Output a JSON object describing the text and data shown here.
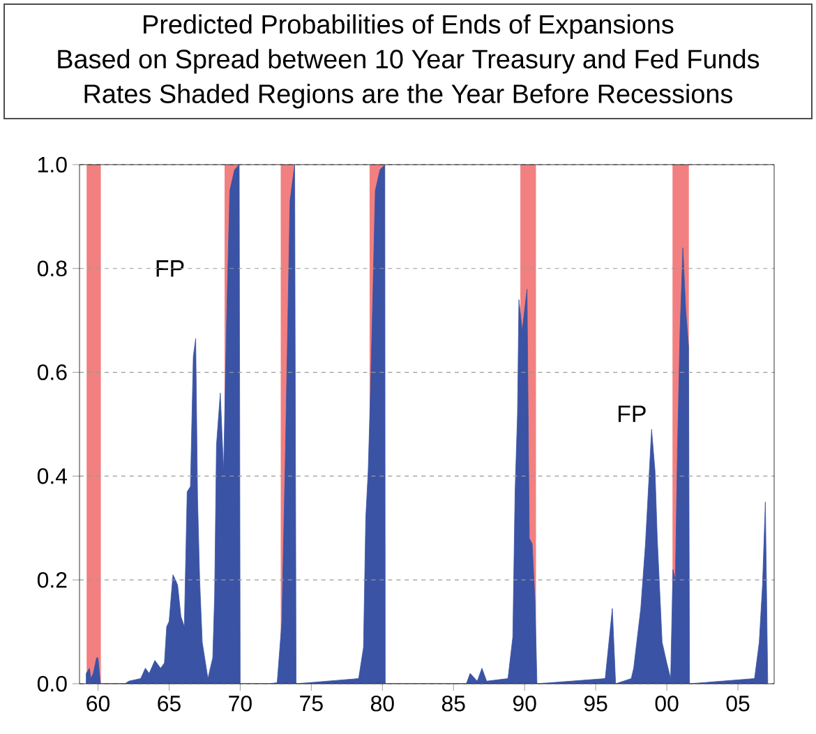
{
  "chart_data": {
    "type": "area",
    "title": "Predicted Probabilities of Ends of Expansions",
    "subtitle": "Based on Spread between 10 Year Treasury and Fed Funds Rates Shaded Regions are the Year Before Recessions",
    "xlim": [
      1958.7,
      2007.55
    ],
    "ylim": [
      0,
      1
    ],
    "xticks": [
      {
        "value": 1960,
        "label": "60"
      },
      {
        "value": 1965,
        "label": "65"
      },
      {
        "value": 1970,
        "label": "70"
      },
      {
        "value": 1975,
        "label": "75"
      },
      {
        "value": 1980,
        "label": "80"
      },
      {
        "value": 1985,
        "label": "85"
      },
      {
        "value": 1990,
        "label": "90"
      },
      {
        "value": 1995,
        "label": "95"
      },
      {
        "value": 2000,
        "label": "00"
      },
      {
        "value": 2005,
        "label": "05"
      }
    ],
    "yticks": [
      {
        "value": 0,
        "label": "0.0"
      },
      {
        "value": 0.2,
        "label": "0.2"
      },
      {
        "value": 0.4,
        "label": "0.4"
      },
      {
        "value": 0.6,
        "label": "0.6"
      },
      {
        "value": 0.8,
        "label": "0.8"
      },
      {
        "value": 1,
        "label": "1.0"
      }
    ],
    "grid": "y",
    "bands": [
      {
        "axis": "x",
        "from": 1959.2,
        "to": 1960.2,
        "color": "#f28080"
      },
      {
        "axis": "x",
        "from": 1968.9,
        "to": 1969.9,
        "color": "#f28080"
      },
      {
        "axis": "x",
        "from": 1972.85,
        "to": 1973.8,
        "color": "#f28080"
      },
      {
        "axis": "x",
        "from": 1979.1,
        "to": 1980.15,
        "color": "#f28080"
      },
      {
        "axis": "x",
        "from": 1989.7,
        "to": 1990.8,
        "color": "#f28080"
      },
      {
        "axis": "x",
        "from": 2000.4,
        "to": 2001.55,
        "color": "#f28080"
      }
    ],
    "annotations": [
      "FP",
      "FP"
    ],
    "series": [
      {
        "color": "#3a53a4",
        "x": [
          1959.17,
          1959.4,
          1959.5,
          1959.67,
          1959.9,
          1960.0,
          1960.17,
          1961.9,
          1962.17,
          1963.0,
          1963.33,
          1963.6,
          1964.0,
          1964.4,
          1964.67,
          1964.83,
          1965.0,
          1965.27,
          1965.45,
          1965.6,
          1965.83,
          1966.07,
          1966.27,
          1966.5,
          1966.7,
          1966.87,
          1967.0,
          1967.15,
          1967.33,
          1967.73,
          1968.07,
          1968.2,
          1968.33,
          1968.6,
          1968.83,
          1969.07,
          1969.27,
          1969.6,
          1969.93,
          1970.0,
          1972.0,
          1972.6,
          1972.93,
          1973.17,
          1973.5,
          1973.83,
          1973.93,
          1978.33,
          1978.67,
          1978.83,
          1979.0,
          1979.17,
          1979.33,
          1979.5,
          1979.83,
          1980.17,
          1980.2,
          1985.9,
          1986.17,
          1986.67,
          1987.0,
          1987.33,
          1988.83,
          1989.17,
          1989.33,
          1989.5,
          1989.6,
          1989.83,
          1990.17,
          1990.33,
          1990.53,
          1990.73,
          1990.87,
          1995.67,
          1996.17,
          1996.4,
          1997.5,
          1997.67,
          1998.17,
          1998.5,
          1998.93,
          1999.17,
          1999.33,
          1999.67,
          2000.0,
          2000.27,
          2000.43,
          2000.6,
          2000.75,
          2000.93,
          2001.13,
          2001.33,
          2001.53,
          2001.6,
          2006.17,
          2006.5,
          2006.73,
          2006.93,
          2007.1
        ],
        "values": [
          0.02,
          0.03,
          0.01,
          0.02,
          0.05,
          0.05,
          0.0,
          0.0,
          0.005,
          0.01,
          0.03,
          0.02,
          0.045,
          0.03,
          0.04,
          0.11,
          0.12,
          0.21,
          0.2,
          0.19,
          0.13,
          0.11,
          0.37,
          0.38,
          0.63,
          0.665,
          0.36,
          0.2,
          0.08,
          0.01,
          0.05,
          0.17,
          0.46,
          0.56,
          0.41,
          0.73,
          0.95,
          0.99,
          1.0,
          0.0,
          0.0,
          0.002,
          0.12,
          0.43,
          0.93,
          1.0,
          0.0,
          0.01,
          0.07,
          0.32,
          0.41,
          0.57,
          0.75,
          0.95,
          0.99,
          1.0,
          0.0,
          0.0,
          0.02,
          0.005,
          0.03,
          0.005,
          0.01,
          0.09,
          0.37,
          0.52,
          0.74,
          0.68,
          0.76,
          0.28,
          0.27,
          0.16,
          0.0,
          0.01,
          0.145,
          0.0,
          0.01,
          0.03,
          0.145,
          0.27,
          0.49,
          0.41,
          0.28,
          0.08,
          0.04,
          0.01,
          0.22,
          0.2,
          0.45,
          0.68,
          0.84,
          0.72,
          0.65,
          0.0,
          0.01,
          0.08,
          0.19,
          0.35,
          0.0
        ]
      }
    ]
  }
}
